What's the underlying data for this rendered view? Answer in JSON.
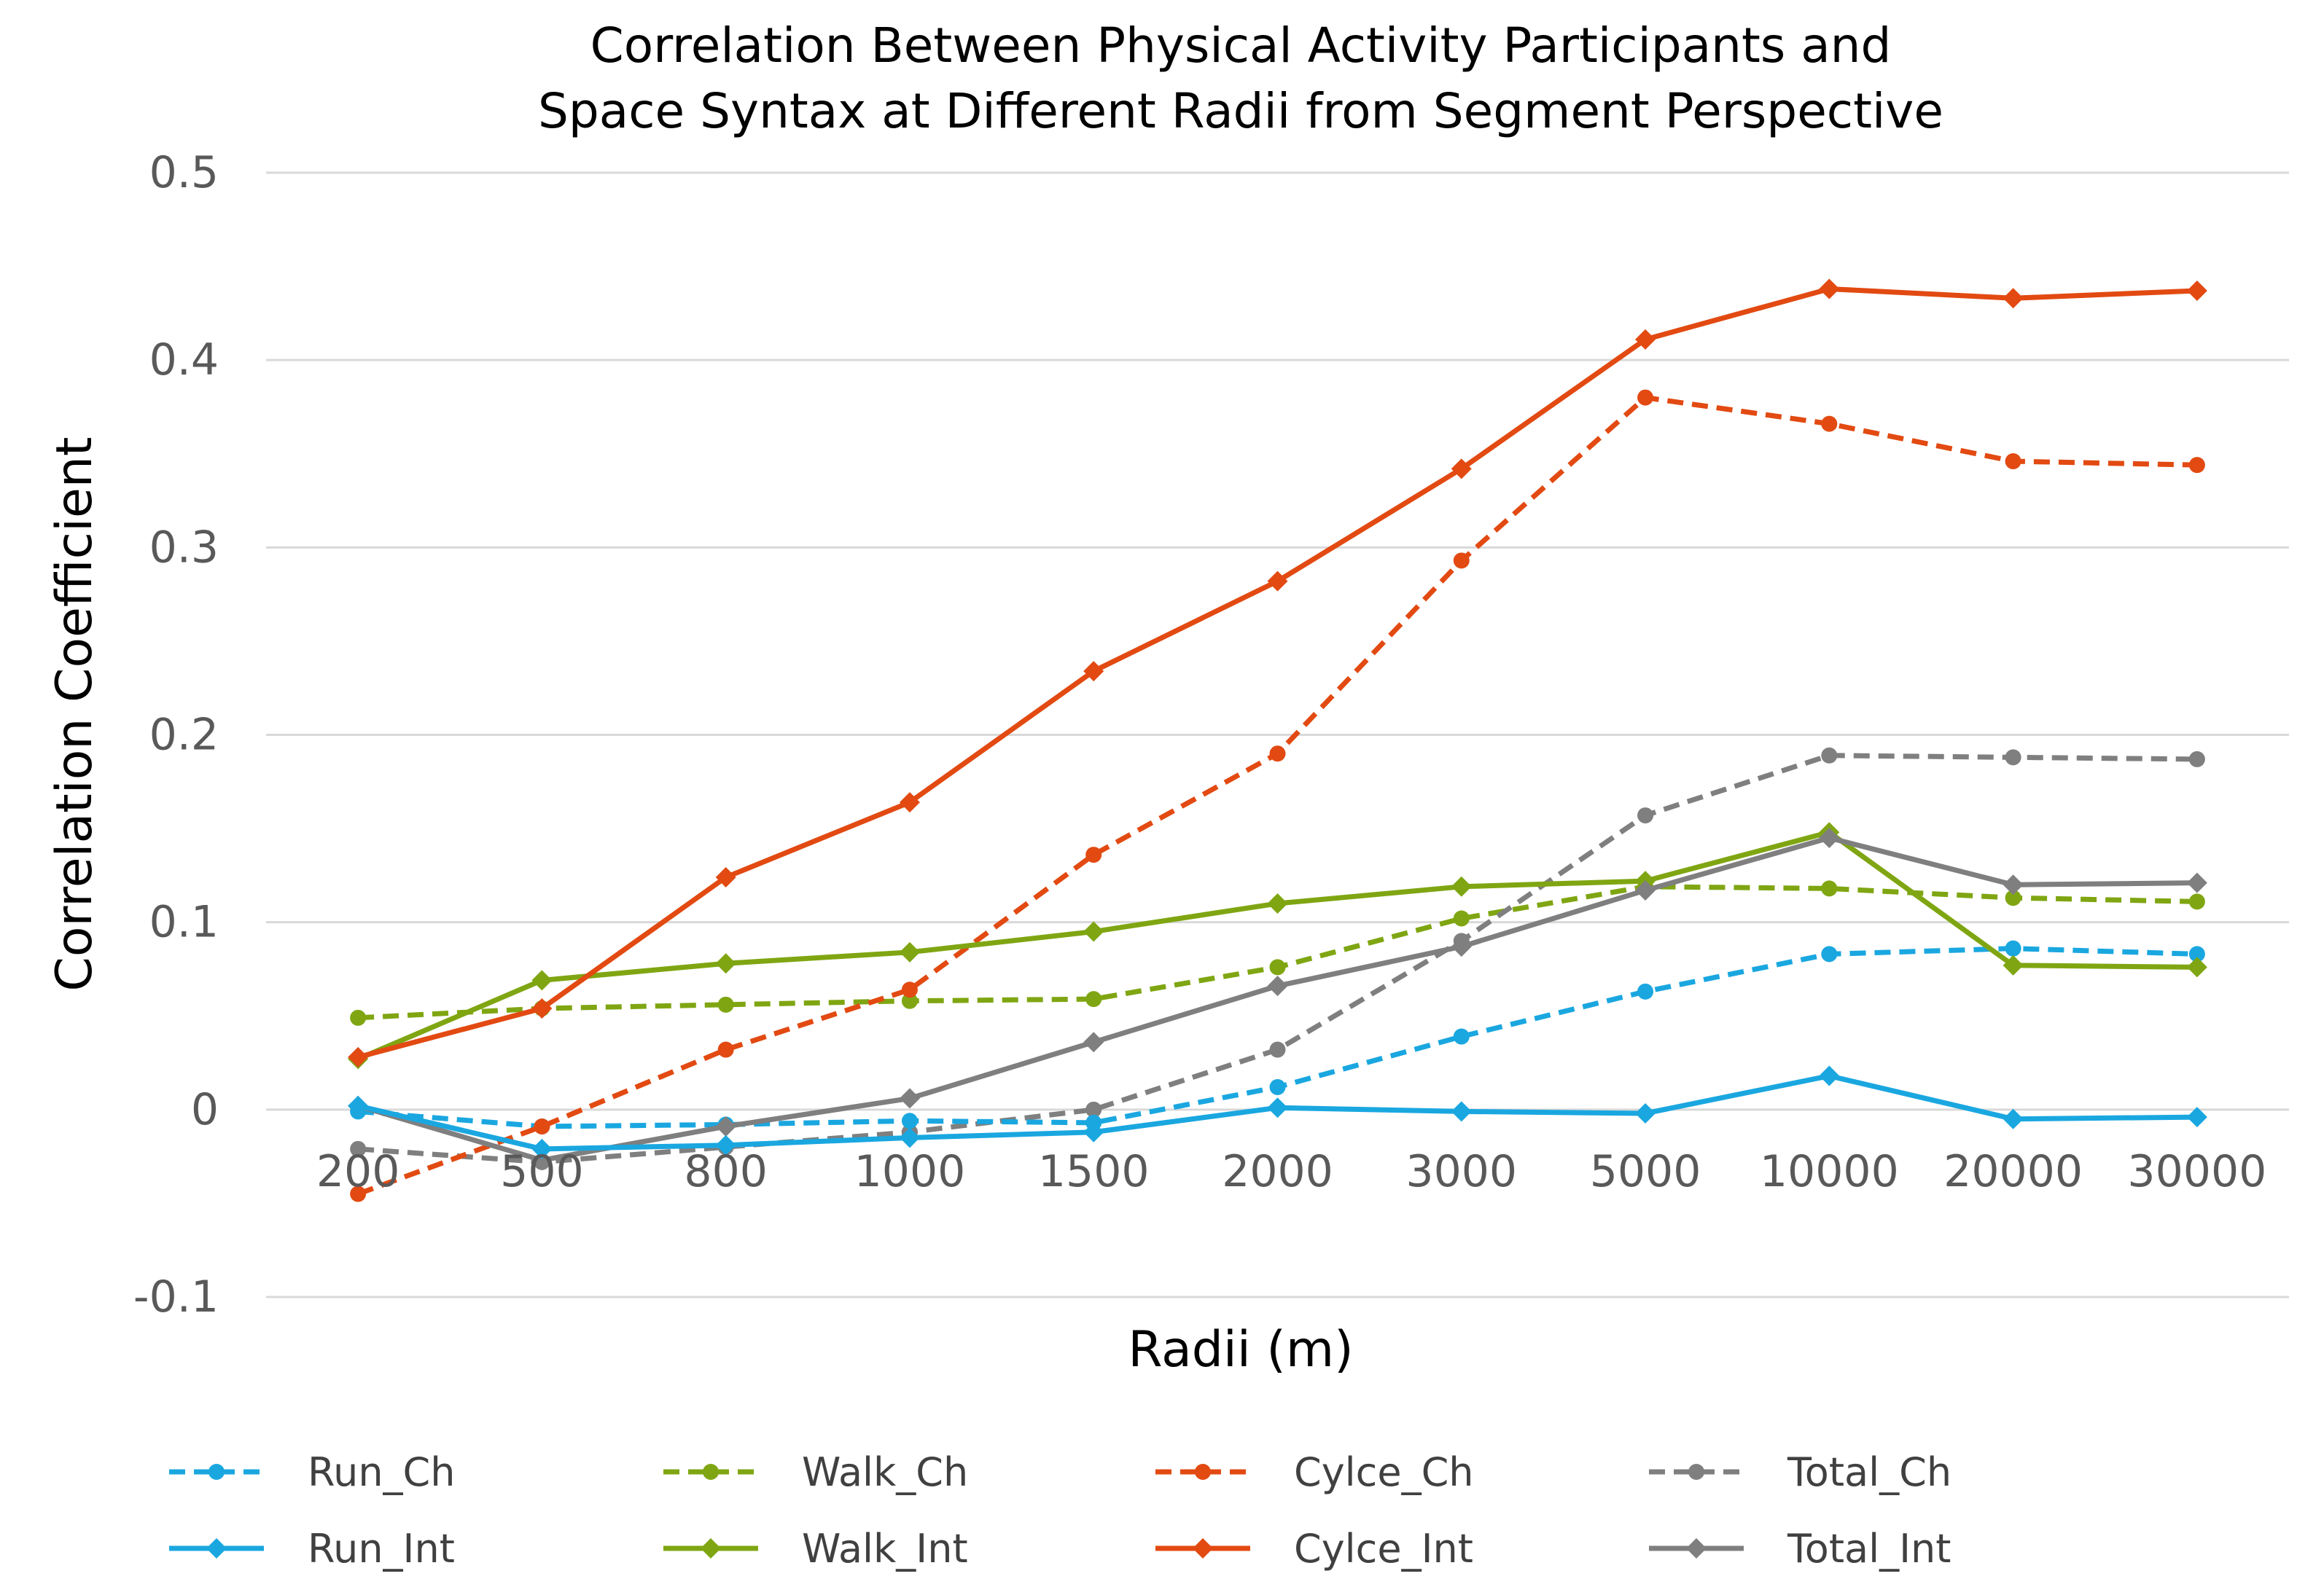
{
  "chart_data": {
    "type": "line",
    "title_lines": [
      "Correlation Between Physical Activity Participants and",
      "Space Syntax at Different Radii from Segment Perspective"
    ],
    "xlabel": "Radii (m)",
    "ylabel": "Correlation Coefficient",
    "categories": [
      "200",
      "500",
      "800",
      "1000",
      "1500",
      "2000",
      "3000",
      "5000",
      "10000",
      "20000",
      "30000"
    ],
    "ylim": [
      -0.1,
      0.5
    ],
    "yticks": [
      -0.1,
      0,
      0.1,
      0.2,
      0.3,
      0.4,
      0.5
    ],
    "ytick_labels": [
      "-0.1",
      "0",
      "0.1",
      "0.2",
      "0.3",
      "0.4",
      "0.5"
    ],
    "grid": true,
    "legend_position": "bottom",
    "series": [
      {
        "name": "Run_Ch",
        "color": "#1aa7e0",
        "dash": true,
        "marker": "circle",
        "values": [
          -0.001,
          -0.009,
          -0.008,
          -0.006,
          -0.007,
          0.012,
          0.039,
          0.063,
          0.083,
          0.086,
          0.083
        ]
      },
      {
        "name": "Walk_Ch",
        "color": "#7fa612",
        "dash": true,
        "marker": "circle",
        "values": [
          0.049,
          0.054,
          0.056,
          0.058,
          0.059,
          0.076,
          0.102,
          0.119,
          0.118,
          0.113,
          0.111
        ]
      },
      {
        "name": "Cylce_Ch",
        "color": "#e24a12",
        "dash": true,
        "marker": "circle",
        "values": [
          -0.045,
          -0.009,
          0.032,
          0.064,
          0.136,
          0.19,
          0.293,
          0.38,
          0.366,
          0.346,
          0.344
        ]
      },
      {
        "name": "Total_Ch",
        "color": "#7f7f7f",
        "dash": true,
        "marker": "circle",
        "values": [
          -0.021,
          -0.028,
          -0.02,
          -0.012,
          0.0,
          0.032,
          0.09,
          0.157,
          0.189,
          0.188,
          0.187
        ]
      },
      {
        "name": "Run_Int",
        "color": "#1aa7e0",
        "dash": false,
        "marker": "diamond",
        "values": [
          0.002,
          -0.021,
          -0.019,
          -0.015,
          -0.012,
          0.001,
          -0.001,
          -0.002,
          0.018,
          -0.005,
          -0.004
        ]
      },
      {
        "name": "Walk_Int",
        "color": "#7fa612",
        "dash": false,
        "marker": "diamond",
        "values": [
          0.027,
          0.069,
          0.078,
          0.084,
          0.095,
          0.11,
          0.119,
          0.122,
          0.148,
          0.077,
          0.076
        ]
      },
      {
        "name": "Cylce_Int",
        "color": "#e24a12",
        "dash": false,
        "marker": "diamond",
        "values": [
          0.028,
          0.054,
          0.124,
          0.164,
          0.234,
          0.282,
          0.342,
          0.411,
          0.438,
          0.433,
          0.437
        ]
      },
      {
        "name": "Total_Int",
        "color": "#7f7f7f",
        "dash": false,
        "marker": "diamond",
        "values": [
          0.002,
          -0.027,
          -0.009,
          0.006,
          0.036,
          0.066,
          0.087,
          0.117,
          0.145,
          0.12,
          0.121
        ]
      }
    ]
  }
}
